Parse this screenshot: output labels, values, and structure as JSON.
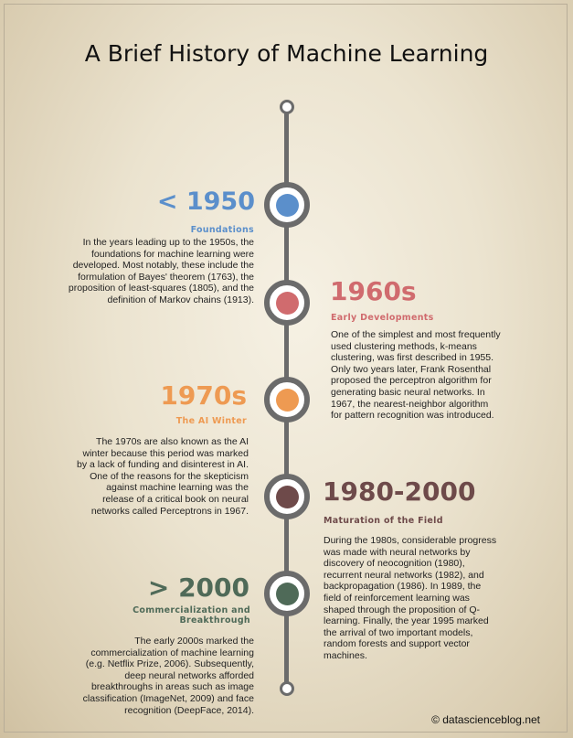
{
  "title": "A Brief History of Machine Learning",
  "colors": {
    "foundations": "#5b8fcb",
    "early": "#d06b6e",
    "winter": "#ee9a52",
    "maturation": "#6e4a4a",
    "commercial": "#4f6a58",
    "spine": "#6b6b6b"
  },
  "eras": [
    {
      "year": "< 1950",
      "subtitle": "Foundations",
      "text": "In the years leading up to the 1950s, the foundations for machine learning were developed. Most notably, these include the formulation of Bayes' theorem (1763), the proposition of least-squares (1805), and the definition of Markov chains (1913)."
    },
    {
      "year": "1960s",
      "subtitle": "Early Developments",
      "text": "One of the simplest and most frequently used clustering methods, k-means clustering, was first described in 1955. Only two years later, Frank Rosenthal proposed the perceptron algorithm for generating basic neural networks. In 1967, the nearest-neighbor algorithm for pattern recognition was introduced."
    },
    {
      "year": "1970s",
      "subtitle": "The AI Winter",
      "text": "The 1970s are also known as the AI winter because this period was marked by a lack of funding and disinterest in AI. One of the reasons for the skepticism against machine learning was the release of a critical book on neural networks called Perceptrons in 1967."
    },
    {
      "year": "1980-2000",
      "subtitle": "Maturation of the Field",
      "text": "During the 1980s, considerable progress was made with neural networks by discovery of neocognition (1980), recurrent neural networks (1982), and backpropagation (1986). In 1989, the field of reinforcement learning was shaped through the proposition of Q-learning. Finally, the year 1995 marked the arrival of two important models, random forests and support vector machines."
    },
    {
      "year": "> 2000",
      "subtitle": "Commercialization and Breakthrough",
      "text": "The early 2000s marked the commercialization of machine learning (e.g. Netflix Prize, 2006). Subsequently, deep neural networks afforded breakthroughs in areas such as image classification (ImageNet, 2009) and face recognition (DeepFace, 2014)."
    }
  ],
  "footer": "© datascienceblog.net"
}
